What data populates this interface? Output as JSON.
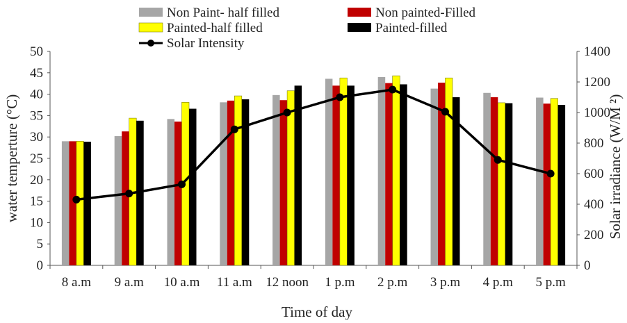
{
  "chart_data": {
    "type": "bar",
    "categories": [
      "8 a.m",
      "9 a.m",
      "10 a.m",
      "11 a.m",
      "12 noon",
      "1 p.m",
      "2 p.m",
      "3 p.m",
      "4 p.m",
      "5 p.m"
    ],
    "series": [
      {
        "name": "Non Paint- half filled",
        "color": "#a6a6a6",
        "values": [
          29.0,
          30.2,
          34.2,
          38.1,
          39.8,
          43.6,
          44.0,
          41.3,
          40.3,
          39.2
        ]
      },
      {
        "name": "Non painted-Filled",
        "color": "#c00000",
        "values": [
          29.0,
          31.3,
          33.6,
          38.5,
          38.6,
          42.0,
          42.6,
          42.7,
          39.3,
          37.8
        ]
      },
      {
        "name": "Painted-half filled",
        "color": "#ffff00",
        "values": [
          29.0,
          34.4,
          38.1,
          39.6,
          40.8,
          43.8,
          44.3,
          43.8,
          38.0,
          39.0
        ]
      },
      {
        "name": "Painted-filled",
        "color": "#000000",
        "values": [
          28.9,
          33.8,
          36.6,
          38.8,
          42.0,
          42.0,
          42.3,
          39.3,
          37.9,
          37.5
        ]
      }
    ],
    "line_series": {
      "name": "Solar Intensity",
      "color": "#000000",
      "axis": "right",
      "values": [
        430,
        470,
        530,
        890,
        1000,
        1100,
        1150,
        1005,
        690,
        600
      ]
    },
    "xlabel": "Time of day",
    "ylabel": "water temperture (°C)",
    "y2label": "Solar irradiance (W/M ²)",
    "ylim": [
      0,
      50
    ],
    "y2lim": [
      0,
      1400
    ],
    "yticks": [
      "0",
      "5",
      "10",
      "15",
      "20",
      "25",
      "30",
      "35",
      "40",
      "45",
      "50"
    ],
    "y2ticks": [
      "0",
      "200",
      "400",
      "600",
      "800",
      "1000",
      "1200",
      "1400"
    ],
    "grid": false,
    "legend_position": "top"
  }
}
